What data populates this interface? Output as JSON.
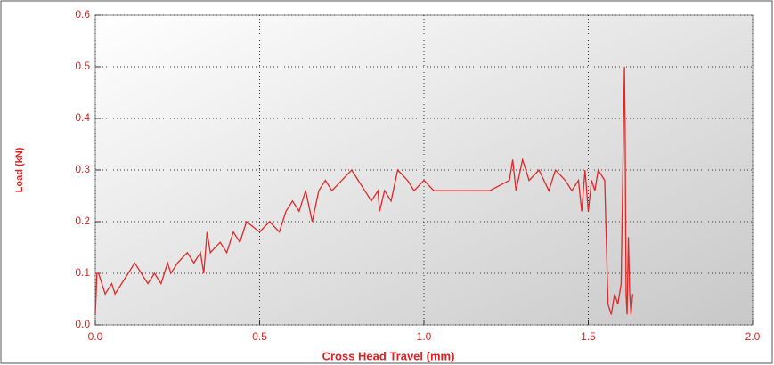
{
  "chart_data": {
    "type": "line",
    "x_label": "Cross Head Travel (mm)",
    "y_label": "Load (kN)",
    "xlim": [
      0,
      2
    ],
    "ylim": [
      0,
      0.6
    ],
    "xticks": [
      {
        "value": 0,
        "label": "0.0"
      },
      0.5,
      {
        "value": 1,
        "label": "1.0"
      },
      1.5,
      {
        "value": 2,
        "label": "2.0"
      }
    ],
    "yticks": [
      {
        "value": 0,
        "label": "0.0"
      },
      0.1,
      0.2,
      0.3,
      0.4,
      0.5,
      0.6
    ],
    "grid": true,
    "series": [
      {
        "color": "#e02828",
        "x": [
          0,
          0.005,
          0.01,
          0.02,
          0.03,
          0.05,
          0.06,
          0.08,
          0.1,
          0.12,
          0.14,
          0.16,
          0.18,
          0.2,
          0.22,
          0.23,
          0.25,
          0.28,
          0.3,
          0.32,
          0.33,
          0.34,
          0.35,
          0.38,
          0.4,
          0.42,
          0.44,
          0.46,
          0.5,
          0.53,
          0.56,
          0.58,
          0.6,
          0.62,
          0.64,
          0.66,
          0.68,
          0.7,
          0.72,
          0.75,
          0.78,
          0.8,
          0.82,
          0.84,
          0.86,
          0.865,
          0.88,
          0.9,
          0.92,
          0.95,
          0.97,
          1.0,
          1.03,
          1.2,
          1.26,
          1.27,
          1.28,
          1.3,
          1.32,
          1.35,
          1.38,
          1.4,
          1.43,
          1.45,
          1.47,
          1.48,
          1.49,
          1.5,
          1.51,
          1.52,
          1.53,
          1.55,
          1.56,
          1.57,
          1.58,
          1.59,
          1.6,
          1.61,
          1.612,
          1.615,
          1.618,
          1.622,
          1.626,
          1.63,
          1.635
        ],
        "values": [
          0.02,
          0.1,
          0.1,
          0.08,
          0.06,
          0.08,
          0.06,
          0.08,
          0.1,
          0.12,
          0.1,
          0.08,
          0.1,
          0.08,
          0.12,
          0.1,
          0.12,
          0.14,
          0.12,
          0.14,
          0.1,
          0.18,
          0.14,
          0.16,
          0.14,
          0.18,
          0.16,
          0.2,
          0.18,
          0.2,
          0.18,
          0.22,
          0.24,
          0.22,
          0.26,
          0.2,
          0.26,
          0.28,
          0.26,
          0.28,
          0.3,
          0.28,
          0.26,
          0.24,
          0.26,
          0.22,
          0.26,
          0.24,
          0.3,
          0.28,
          0.26,
          0.28,
          0.26,
          0.26,
          0.28,
          0.32,
          0.26,
          0.32,
          0.28,
          0.3,
          0.26,
          0.3,
          0.28,
          0.26,
          0.28,
          0.22,
          0.3,
          0.22,
          0.28,
          0.26,
          0.3,
          0.28,
          0.04,
          0.02,
          0.06,
          0.04,
          0.08,
          0.5,
          0.39,
          0.06,
          0.02,
          0.17,
          0.06,
          0.02,
          0.06
        ]
      }
    ]
  }
}
